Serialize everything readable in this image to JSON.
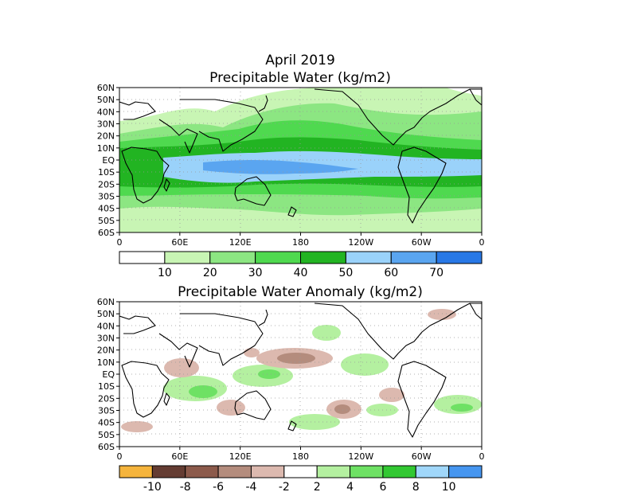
{
  "figure": {
    "title_line1": "April 2019",
    "title_line2": "Precipitable Water (kg/m2)",
    "title_panel2": "Precipitable Water Anomaly (kg/m2)"
  },
  "chart_data": [
    {
      "type": "heatmap",
      "title": "April 2019 Precipitable Water (kg/m2)",
      "x_tick_labels": [
        "0",
        "60E",
        "120E",
        "180",
        "120W",
        "60W",
        "0"
      ],
      "x_ticks_deg": [
        0,
        60,
        120,
        180,
        240,
        300,
        360
      ],
      "y_tick_labels": [
        "60N",
        "50N",
        "40N",
        "30N",
        "20N",
        "10N",
        "EQ",
        "10S",
        "20S",
        "30S",
        "40S",
        "50S",
        "60S"
      ],
      "y_ticks_deg": [
        60,
        50,
        40,
        30,
        20,
        10,
        0,
        -10,
        -20,
        -30,
        -40,
        -50,
        -60
      ],
      "xlim": [
        0,
        360
      ],
      "ylim": [
        -60,
        60
      ],
      "grid": true,
      "colorbar": {
        "labels": [
          "10",
          "20",
          "30",
          "40",
          "50",
          "60",
          "70"
        ],
        "levels": [
          10,
          20,
          30,
          40,
          50,
          60,
          70
        ],
        "colors": [
          "#ffffff",
          "#c8f5b4",
          "#8ce682",
          "#4fd94f",
          "#22b422",
          "#9ad2fa",
          "#5aa5f0",
          "#2878e6"
        ]
      }
    },
    {
      "type": "heatmap",
      "title": "Precipitable Water Anomaly (kg/m2)",
      "x_tick_labels": [
        "0",
        "60E",
        "120E",
        "180",
        "120W",
        "60W",
        "0"
      ],
      "x_ticks_deg": [
        0,
        60,
        120,
        180,
        240,
        300,
        360
      ],
      "y_tick_labels": [
        "60N",
        "50N",
        "40N",
        "30N",
        "20N",
        "10N",
        "EQ",
        "10S",
        "20S",
        "30S",
        "40S",
        "50S",
        "60S"
      ],
      "y_ticks_deg": [
        60,
        50,
        40,
        30,
        20,
        10,
        0,
        -10,
        -20,
        -30,
        -40,
        -50,
        -60
      ],
      "xlim": [
        0,
        360
      ],
      "ylim": [
        -60,
        60
      ],
      "grid": true,
      "colorbar": {
        "labels": [
          "-10",
          "-8",
          "-6",
          "-4",
          "-2",
          "2",
          "4",
          "6",
          "8",
          "10"
        ],
        "levels": [
          -10,
          -8,
          -6,
          -4,
          -2,
          2,
          4,
          6,
          8,
          10
        ],
        "colors": [
          "#f5b43c",
          "#643c32",
          "#8c5a4b",
          "#b48c7d",
          "#dcb9af",
          "#ffffff",
          "#b4f0a0",
          "#6ee164",
          "#32c832",
          "#a0d7fa",
          "#4696f0"
        ]
      }
    }
  ]
}
